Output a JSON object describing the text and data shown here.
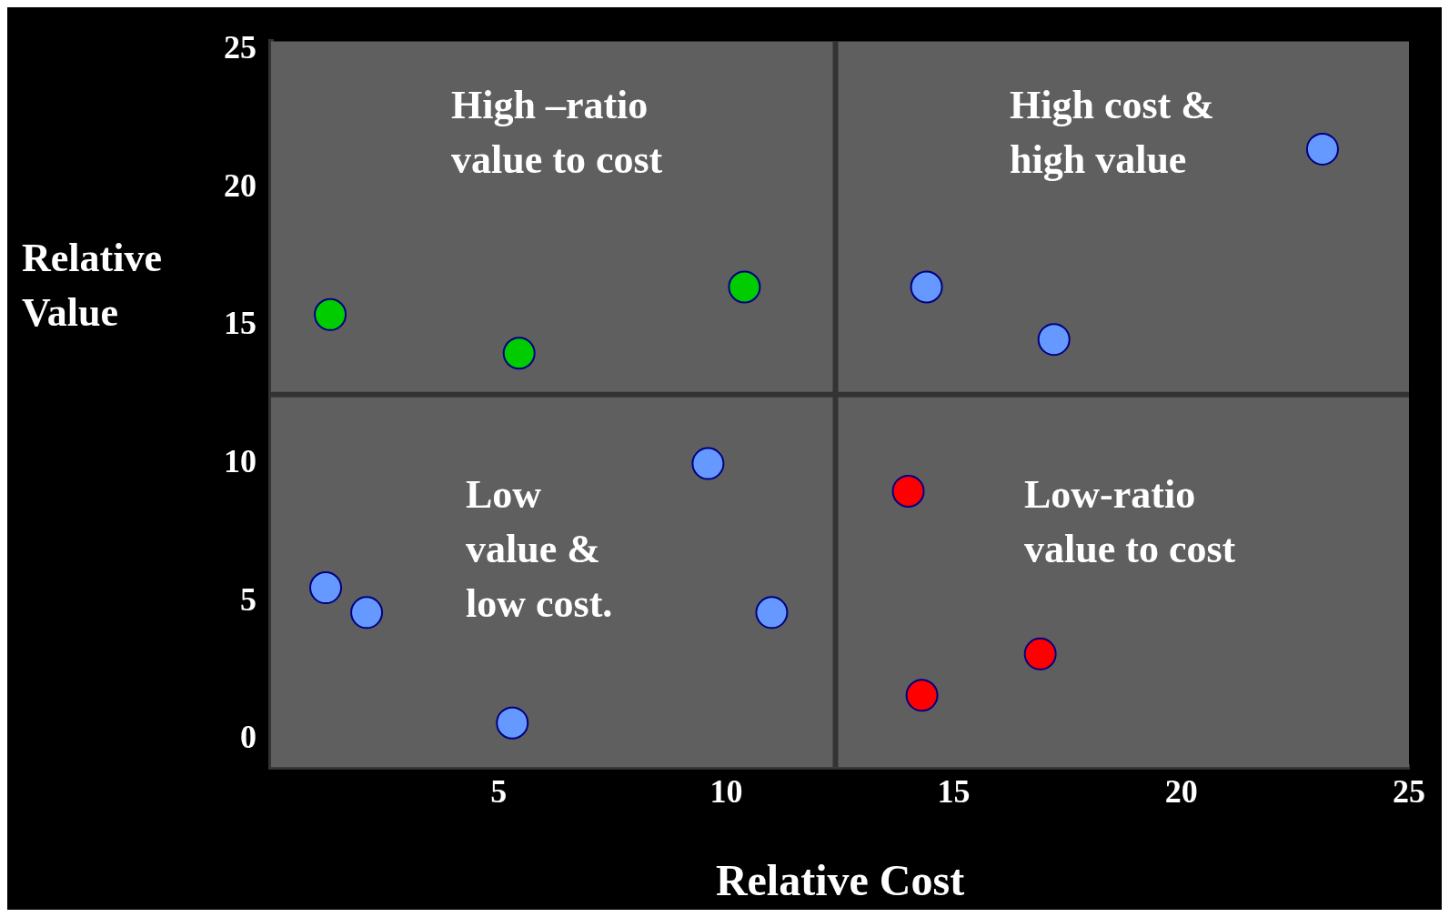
{
  "chart_data": {
    "type": "scatter",
    "xlabel": "Relative Cost",
    "ylabel": "Relative Value",
    "annotations": [
      "High –ratio\nvalue to cost",
      "High cost &\nhigh value",
      "Low\nvalue &\nlow cost.",
      "Low-ratio\nvalue to cost"
    ],
    "series": [
      {
        "color": "#00cc00",
        "x": [
          1.3,
          5.45,
          10.4
        ],
        "values": [
          15.4,
          14.0,
          16.4
        ]
      },
      {
        "color": "#6699ff",
        "x": [
          23.1,
          14.4,
          17.2,
          9.6,
          1.2,
          2.1,
          11.0,
          5.3
        ],
        "values": [
          21.4,
          16.4,
          14.5,
          10.0,
          5.5,
          4.6,
          4.6,
          0.6
        ]
      },
      {
        "color": "#ff0000",
        "x": [
          14.0,
          16.9,
          14.3
        ],
        "values": [
          9.0,
          3.1,
          1.6
        ]
      }
    ],
    "xlim": [
      0,
      25
    ],
    "ylim": [
      -1,
      25.3
    ],
    "xticks": [
      5,
      10,
      15,
      20,
      25
    ],
    "yticks": [
      0,
      5,
      10,
      15,
      20,
      25
    ],
    "ref_lines": [
      {
        "axis": "x",
        "value": 12.4,
        "color": "#333333"
      },
      {
        "axis": "y",
        "value": 12.5,
        "color": "#333333"
      }
    ],
    "grid": false,
    "legend": false,
    "marker": "circle"
  }
}
